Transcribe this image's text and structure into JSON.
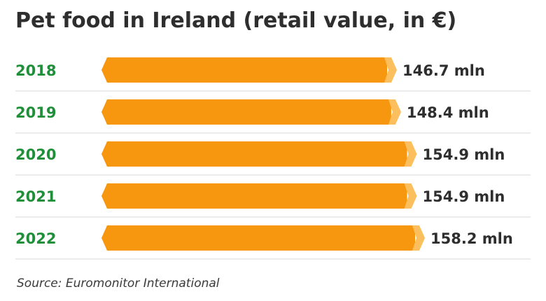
{
  "chart_data": {
    "type": "bar",
    "orientation": "horizontal",
    "title": "Pet food in Ireland (retail value, in €)",
    "categories": [
      "2018",
      "2019",
      "2020",
      "2021",
      "2022"
    ],
    "values": [
      146.7,
      148.4,
      154.9,
      154.9,
      158.2
    ],
    "value_labels": [
      "146.7 mln",
      "148.4 mln",
      "154.9 mln",
      "154.9 mln",
      "158.2 mln"
    ],
    "unit": "mln",
    "source": "Source: Euromonitor International"
  },
  "colors": {
    "bar": "#f7960f",
    "bar_tip": "#fbbf5e",
    "year_label": "#1f8f3a",
    "text": "#2e2e2e",
    "separator": "#d9d9d9"
  }
}
